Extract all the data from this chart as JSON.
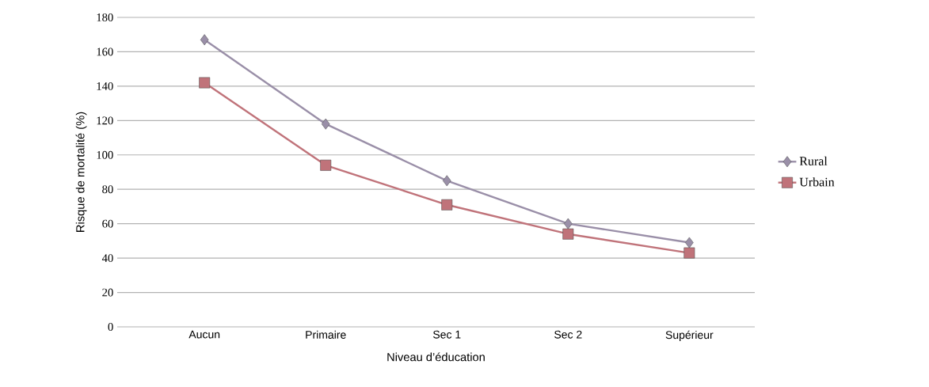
{
  "chart_data": {
    "type": "line",
    "xlabel": "Niveau d’éducation",
    "ylabel": "Risque de mortalité (%)",
    "categories": [
      "Aucun",
      "Primaire",
      "Sec 1",
      "Sec 2",
      "Supérieur"
    ],
    "series": [
      {
        "name": "Rural",
        "color": "#9a8fa8",
        "marker": "diamond",
        "values": [
          167,
          118,
          85,
          60,
          49
        ]
      },
      {
        "name": "Urbain",
        "color": "#c0737a",
        "marker": "square",
        "values": [
          142,
          94,
          71,
          54,
          43
        ]
      }
    ],
    "ylim": [
      0,
      180
    ],
    "yticks": [
      0,
      20,
      40,
      60,
      80,
      100,
      120,
      140,
      160,
      180
    ],
    "grid": "y",
    "legend": "right"
  }
}
